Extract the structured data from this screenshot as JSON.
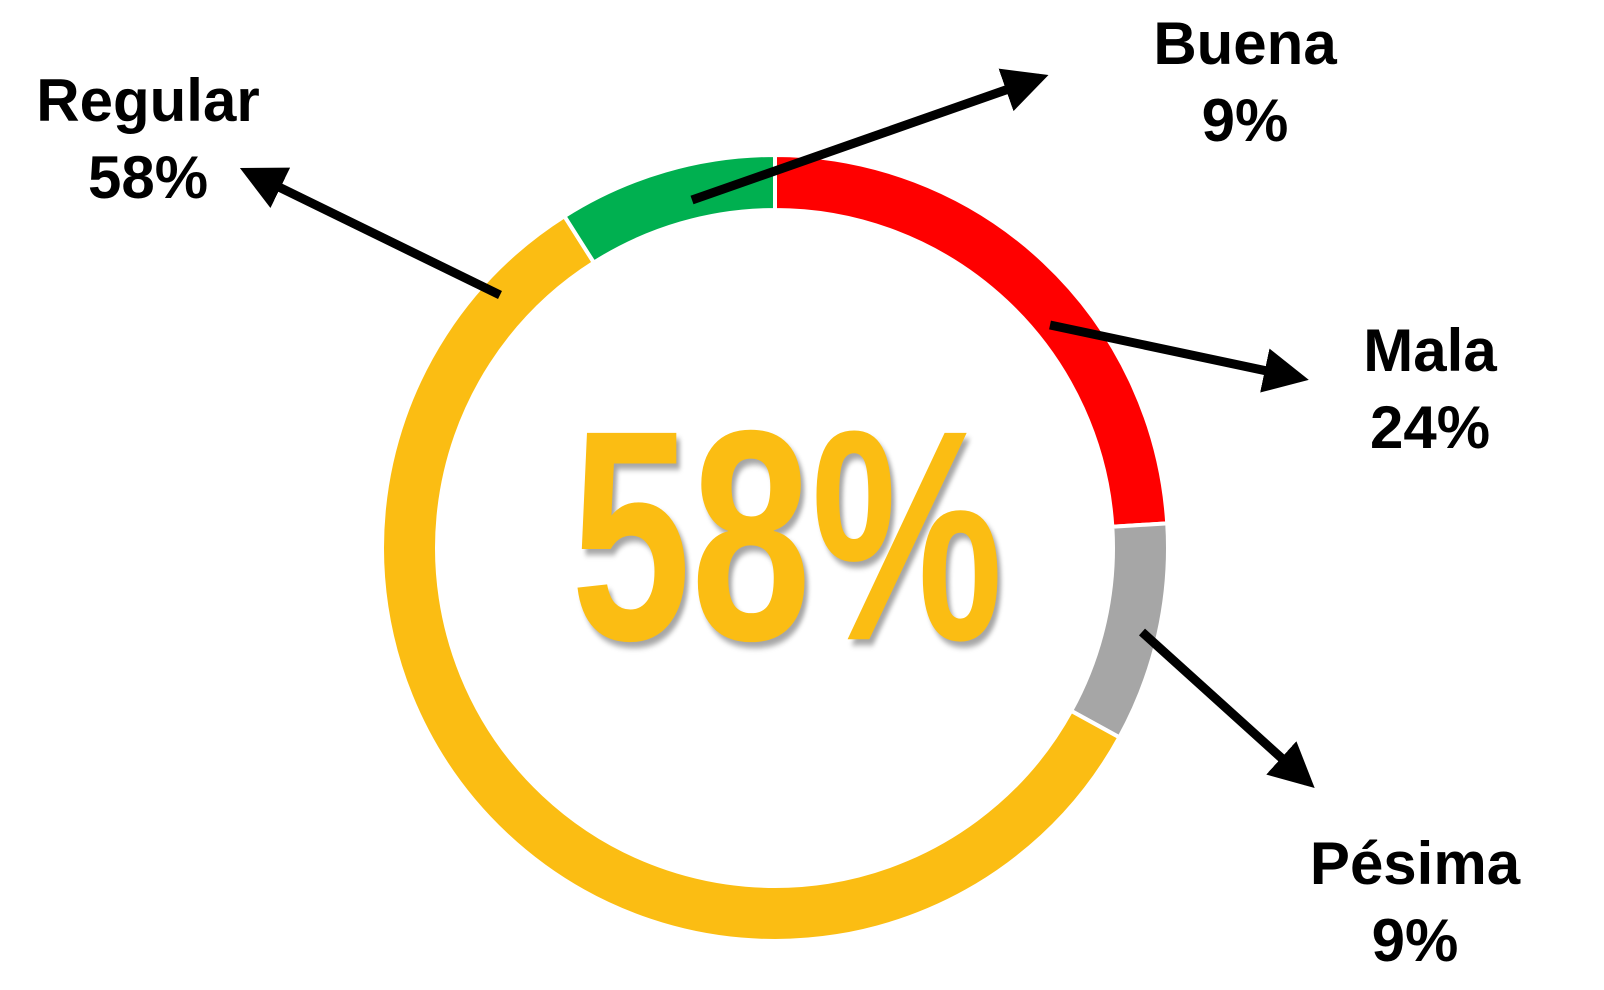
{
  "chart_data": {
    "type": "donut",
    "categories": [
      "Mala",
      "Pésima",
      "Regular",
      "Buena"
    ],
    "values": [
      24,
      9,
      58,
      9
    ],
    "value_labels": [
      "24%",
      "9%",
      "58%",
      "9%"
    ],
    "colors": [
      "#ff0000",
      "#a6a6a6",
      "#fbbd13",
      "#00b050"
    ],
    "center_label": "58%"
  }
}
